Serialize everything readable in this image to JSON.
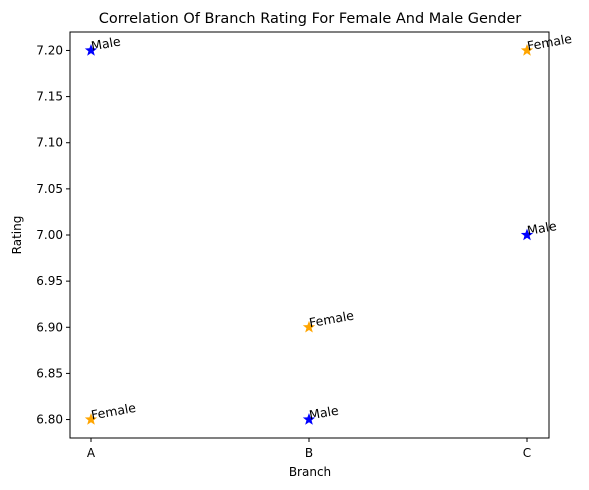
{
  "chart_data": {
    "type": "scatter",
    "title": "Correlation Of Branch Rating For Female And Male Gender",
    "xlabel": "Branch",
    "ylabel": "Rating",
    "categories": [
      "A",
      "B",
      "C"
    ],
    "ylim": [
      6.78,
      7.22
    ],
    "yticks": [
      "6.80",
      "6.85",
      "6.90",
      "6.95",
      "7.00",
      "7.05",
      "7.10",
      "7.15",
      "7.20"
    ],
    "grid": false,
    "legend": "none",
    "marker": "star",
    "points": [
      {
        "x": "A",
        "y": 7.2,
        "label": "Male",
        "color": "#0000ff"
      },
      {
        "x": "A",
        "y": 6.8,
        "label": "Female",
        "color": "#ffa500"
      },
      {
        "x": "B",
        "y": 6.9,
        "label": "Female",
        "color": "#ffa500"
      },
      {
        "x": "B",
        "y": 6.8,
        "label": "Male",
        "color": "#0000ff"
      },
      {
        "x": "C",
        "y": 7.2,
        "label": "Female",
        "color": "#ffa500"
      },
      {
        "x": "C",
        "y": 7.0,
        "label": "Male",
        "color": "#0000ff"
      }
    ]
  }
}
